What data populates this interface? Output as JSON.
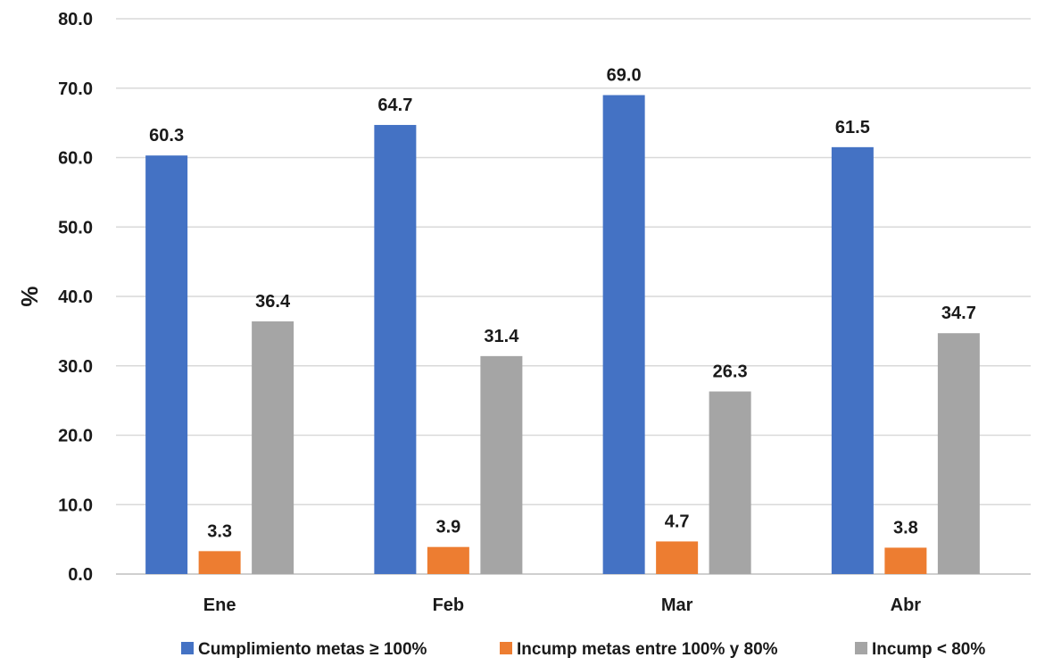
{
  "chart_data": {
    "type": "bar",
    "categories": [
      "Ene",
      "Feb",
      "Mar",
      "Abr"
    ],
    "series": [
      {
        "name": "Cumplimiento metas ≥ 100%",
        "values": [
          60.3,
          64.7,
          69.0,
          61.5
        ],
        "labels": [
          "60.3",
          "64.7",
          "69.0",
          "61.5"
        ],
        "color": "#4472C4"
      },
      {
        "name": "Incump metas entre 100% y 80%",
        "values": [
          3.3,
          3.9,
          4.7,
          3.8
        ],
        "labels": [
          "3.3",
          "3.9",
          "4.7",
          "3.8"
        ],
        "color": "#ED7D31"
      },
      {
        "name": "Incump < 80%",
        "values": [
          36.4,
          31.4,
          26.3,
          34.7
        ],
        "labels": [
          "36.4",
          "31.4",
          "26.3",
          "34.7"
        ],
        "color": "#A5A5A5"
      }
    ],
    "yticks": [
      "0.0",
      "10.0",
      "20.0",
      "30.0",
      "40.0",
      "50.0",
      "60.0",
      "70.0",
      "80.0"
    ],
    "ylabel": "%",
    "xlabel": "",
    "ylim": [
      0,
      80
    ],
    "grid": true,
    "legend_position": "bottom"
  }
}
